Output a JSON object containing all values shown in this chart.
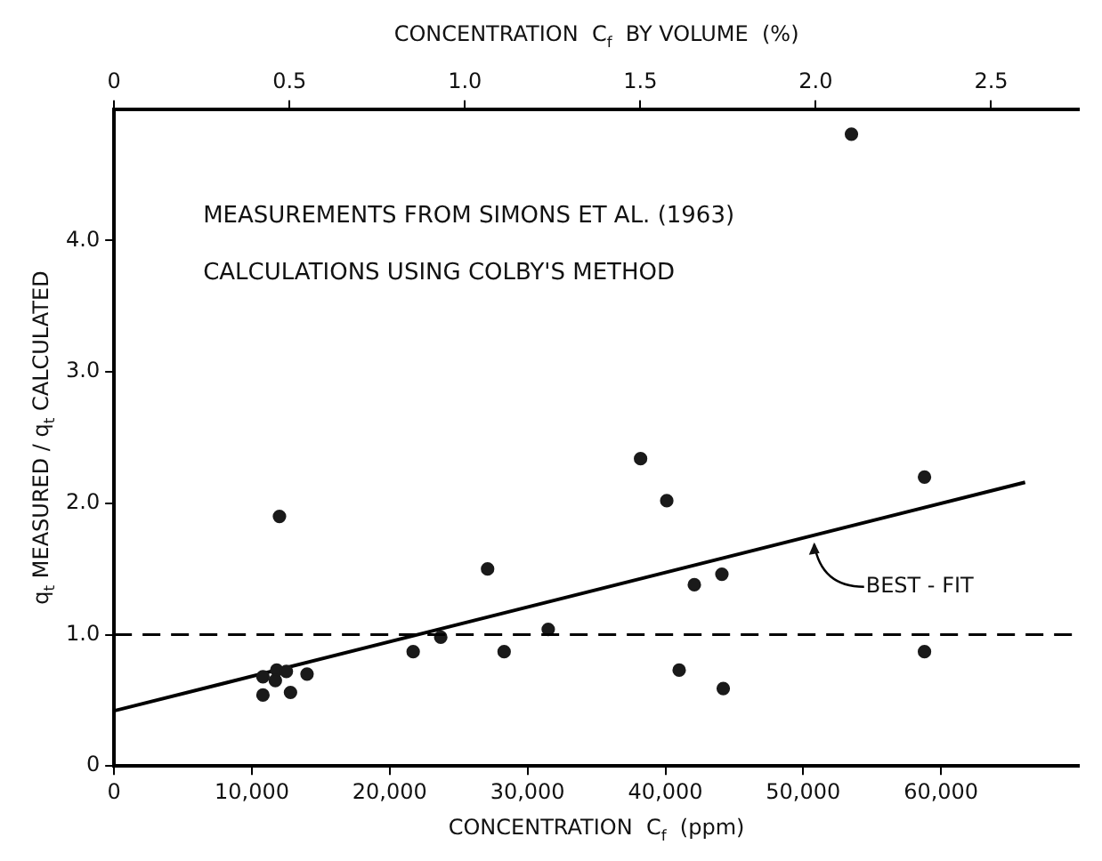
{
  "chart_data": {
    "type": "scatter",
    "xlabel": "CONCENTRATION  C$_{f}$  (ppm)",
    "x2label": "CONCENTRATION  C$_{f}$  BY VOLUME  (%)",
    "ylabel": "q$_{t}$ MEASURED / q$_{t}$ CALCULATED",
    "xlim": [
      0,
      70000
    ],
    "xticks": [
      0,
      {
        "value": 10000,
        "label": "10,000"
      },
      {
        "value": 20000,
        "label": "20,000"
      },
      {
        "value": 30000,
        "label": "30,000"
      },
      {
        "value": 40000,
        "label": "40,000"
      },
      {
        "value": 50000,
        "label": "50,000"
      },
      {
        "value": 60000,
        "label": "60,000"
      }
    ],
    "x2lim": [
      0,
      2.75
    ],
    "x2ticks": [
      0,
      0.5,
      {
        "value": 1,
        "label": "1.0"
      },
      1.5,
      {
        "value": 2,
        "label": "2.0"
      },
      2.5
    ],
    "ylim": [
      0,
      5
    ],
    "yticks": [
      0,
      {
        "value": 1,
        "label": "1.0"
      },
      {
        "value": 2,
        "label": "2.0"
      },
      {
        "value": 3,
        "label": "3.0"
      },
      {
        "value": 4,
        "label": "4.0"
      }
    ],
    "grid": false,
    "legend": false,
    "marker": "circle",
    "series": [
      {
        "type": "scatter",
        "color": "#1a1a1a",
        "x": [
          12000,
          10800,
          10800,
          11800,
          11700,
          12500,
          12800,
          14000,
          21700,
          23700,
          27100,
          28300,
          31500,
          38200,
          40100,
          42100,
          44100,
          41000,
          44200,
          58800,
          58800,
          53500
        ],
        "values": [
          1.9,
          0.68,
          0.54,
          0.73,
          0.65,
          0.72,
          0.56,
          0.7,
          0.87,
          0.98,
          1.5,
          0.87,
          1.04,
          2.34,
          2.02,
          1.38,
          1.46,
          0.73,
          0.59,
          2.2,
          0.87,
          4.81
        ]
      },
      {
        "type": "line",
        "color": "#000000",
        "marker": "none",
        "line_style": "solid",
        "x": [
          0,
          66100
        ],
        "values": [
          0.42,
          2.16
        ]
      }
    ],
    "ref_lines": [
      {
        "axis": "y",
        "value": 1.0,
        "color": "#000000",
        "line_style": "dashed"
      }
    ],
    "annotations": [
      "MEASUREMENTS FROM SIMONS ET AL. (1963)",
      "CALCULATIONS USING COLBY'S METHOD",
      {
        "text": "BEST - FIT",
        "x": 50800,
        "y": 1.73
      }
    ]
  }
}
